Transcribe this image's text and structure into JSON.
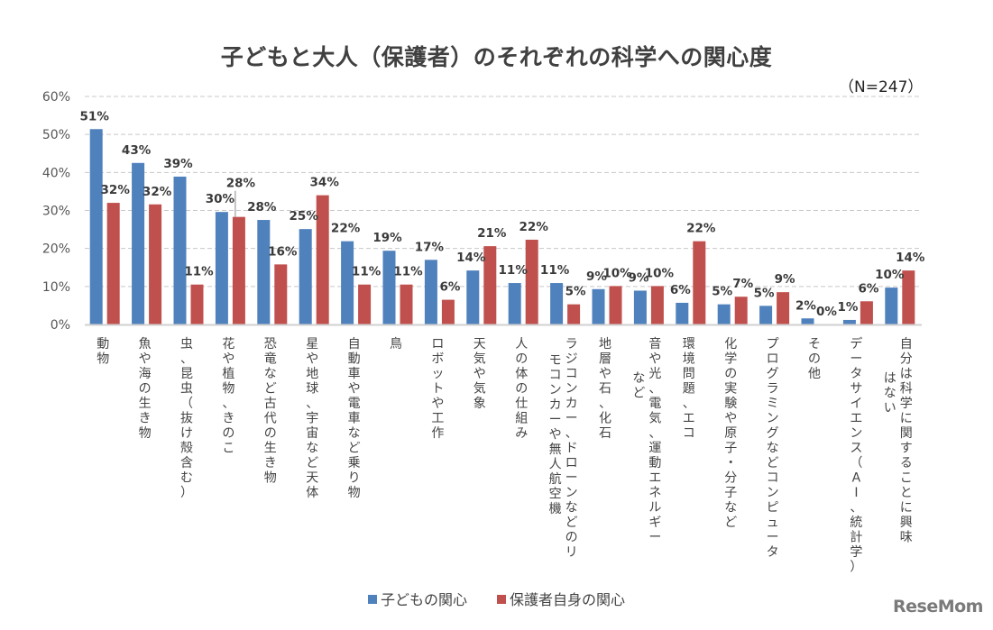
{
  "chart_data": {
    "type": "bar",
    "title": "子どもと大人（保護者）のそれぞれの科学への関心度",
    "annotation": "（N=247）",
    "xlabel": "",
    "ylabel": "",
    "ylim": [
      0,
      60
    ],
    "yticks": [
      0,
      10,
      20,
      30,
      40,
      50,
      60
    ],
    "ytick_labels": [
      "0%",
      "10%",
      "20%",
      "30%",
      "40%",
      "50%",
      "60%"
    ],
    "grid": true,
    "legend_position": "bottom",
    "categories": [
      "動物",
      "魚や海の生き物",
      "虫、昆虫（抜け殻含む）",
      "花や植物、きのこ",
      "恐竜など古代の生き物",
      "星や地球、宇宙など天体",
      "自動車や電車など乗り物",
      "鳥",
      "ロボットや工作",
      "天気や気象",
      "人の体の仕組み",
      "ラジコンカー、ドローンなどのリモコンカーや無人航空機",
      "地層や石、化石",
      "音や光、電気、運動エネルギーなど",
      "環境問題、エコ",
      "化学の実験や原子・分子など",
      "プログラミングなどコンピュータ",
      "その他",
      "データサイエンス（AI、統計学）",
      "自分は科学に関することに興味はない"
    ],
    "category_lines": [
      [
        "動物"
      ],
      [
        "魚や海の生き物"
      ],
      [
        "虫、昆虫（抜け殻含む）"
      ],
      [
        "花や植物、きのこ"
      ],
      [
        "恐竜など古代の生き物"
      ],
      [
        "星や地球、宇宙など天体"
      ],
      [
        "自動車や電車など乗り物"
      ],
      [
        "鳥"
      ],
      [
        "ロボットや工作"
      ],
      [
        "天気や気象"
      ],
      [
        "人の体の仕組み"
      ],
      [
        "ラジコンカー、ドローンなどのリ",
        "モコンカーや無人航空機"
      ],
      [
        "地層や石、化石"
      ],
      [
        "音や光、電気、運動エネルギー",
        "など"
      ],
      [
        "環境問題、エコ"
      ],
      [
        "化学の実験や原子・分子など"
      ],
      [
        "プログラミングなどコンピュータ"
      ],
      [
        "その他"
      ],
      [
        "データサイエンス（AI、統計学）"
      ],
      [
        "自分は科学に関することに興味",
        "はない"
      ]
    ],
    "series": [
      {
        "name": "子どもの関心",
        "color": "#4f81bd",
        "values": [
          51.4,
          42.5,
          38.9,
          29.6,
          27.5,
          25.1,
          21.9,
          19.4,
          17.0,
          14.2,
          10.9,
          10.9,
          9.3,
          8.9,
          5.7,
          5.3,
          4.9,
          1.6,
          1.2,
          9.7
        ],
        "labels": [
          "51%",
          "43%",
          "39%",
          "30%",
          "28%",
          "25%",
          "22%",
          "19%",
          "17%",
          "14%",
          "11%",
          "11%",
          "9%",
          "9%",
          "6%",
          "5%",
          "5%",
          "2%",
          "1%",
          "10%"
        ]
      },
      {
        "name": "保護者自身の関心",
        "color": "#c0504d",
        "values": [
          32.0,
          31.6,
          10.5,
          28.3,
          15.8,
          34.0,
          10.5,
          10.5,
          6.5,
          20.6,
          22.3,
          5.3,
          10.1,
          10.1,
          21.9,
          7.3,
          8.5,
          0.0,
          6.1,
          14.2
        ],
        "labels": [
          "32%",
          "32%",
          "11%",
          "28%",
          "16%",
          "34%",
          "11%",
          "11%",
          "6%",
          "21%",
          "22%",
          "5%",
          "10%",
          "10%",
          "22%",
          "7%",
          "9%",
          "0%",
          "6%",
          "14%"
        ]
      }
    ]
  },
  "legend": {
    "items": [
      {
        "label": "子どもの関心",
        "color": "#4f81bd"
      },
      {
        "label": "保護者自身の関心",
        "color": "#c0504d"
      }
    ]
  },
  "watermark": {
    "text": "ReseMom"
  }
}
